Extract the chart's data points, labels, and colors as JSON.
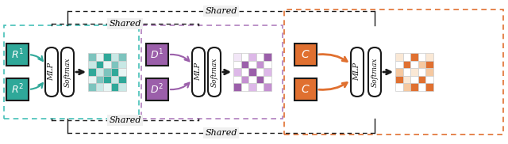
{
  "fig_width": 6.4,
  "fig_height": 1.82,
  "dpi": 100,
  "bg_color": "#ffffff",
  "teal_color": "#2fa899",
  "teal_med": "#7dc4be",
  "teal_light": "#c8e8e5",
  "teal_vlight": "#e8f5f4",
  "purple_color": "#9b5faa",
  "purple_med": "#c490d1",
  "purple_light": "#ddb8e8",
  "purple_vlight": "#f2e6f7",
  "orange_color": "#e07030",
  "orange_med": "#eca070",
  "orange_light": "#f5c8a0",
  "orange_vlight": "#fae8d5",
  "cyan_dash": "#45c0b8",
  "purple_dash": "#b07fbe",
  "orange_dash": "#e07030",
  "black": "#1a1a1a",
  "teal_grid": [
    [
      "#7dc4be",
      "#e8f5f4",
      "#2fa899",
      "#c8e8e5",
      "#7dc4be"
    ],
    [
      "#c8e8e5",
      "#2fa899",
      "#e8f5f4",
      "#7dc4be",
      "#c8e8e5"
    ],
    [
      "#2fa899",
      "#c8e8e5",
      "#7dc4be",
      "#2fa899",
      "#e8f5f4"
    ],
    [
      "#e8f5f4",
      "#7dc4be",
      "#2fa899",
      "#c8e8e5",
      "#2fa899"
    ],
    [
      "#7dc4be",
      "#c8e8e5",
      "#e8f5f4",
      "#2fa899",
      "#c8e8e5"
    ]
  ],
  "purple_grid": [
    [
      "#f2e6f7",
      "#ffffff",
      "#ddb8e8",
      "#ffffff",
      "#9b5faa"
    ],
    [
      "#ffffff",
      "#9b5faa",
      "#ffffff",
      "#c490d1",
      "#ffffff"
    ],
    [
      "#ddb8e8",
      "#ffffff",
      "#9b5faa",
      "#ffffff",
      "#ddb8e8"
    ],
    [
      "#ffffff",
      "#c490d1",
      "#ffffff",
      "#9b5faa",
      "#ffffff"
    ],
    [
      "#9b5faa",
      "#ffffff",
      "#ddb8e8",
      "#ffffff",
      "#c490d1"
    ]
  ],
  "orange_grid": [
    [
      "#fae8d5",
      "#ffffff",
      "#e07030",
      "#ffffff",
      "#fae8d5"
    ],
    [
      "#ffffff",
      "#e07030",
      "#ffffff",
      "#f5c8a0",
      "#e07030"
    ],
    [
      "#f5c8a0",
      "#ffffff",
      "#fae8d5",
      "#ffffff",
      "#f5c8a0"
    ],
    [
      "#e07030",
      "#fae8d5",
      "#ffffff",
      "#e07030",
      "#ffffff"
    ],
    [
      "#ffffff",
      "#f5c8a0",
      "#e07030",
      "#ffffff",
      "#e07030"
    ]
  ],
  "R1_label": "$R^1$",
  "R2_label": "$R^2$",
  "D1_label": "$D^1$",
  "D2_label": "$D^2$",
  "C_label": "$C$",
  "MLP_label": "MLP",
  "Softmax_label": "Softmax",
  "Shared_label": "Shared"
}
